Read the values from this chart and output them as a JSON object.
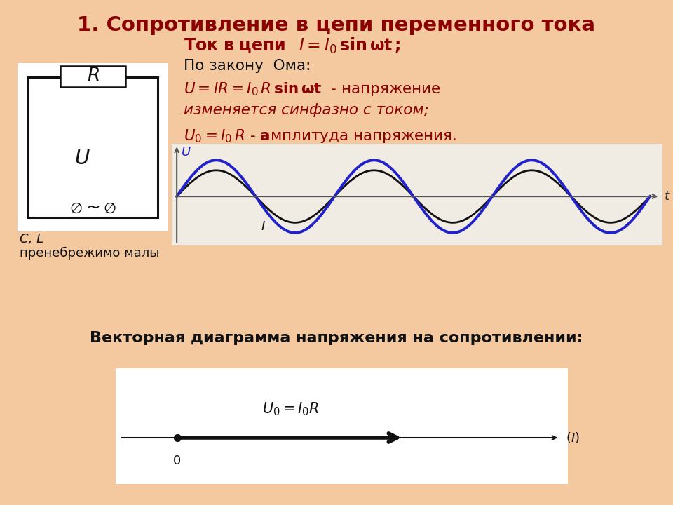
{
  "title": "1. Сопротивление в цепи переменного тока",
  "title_color": "#8B0000",
  "title_fontsize": 21,
  "bg_color": "#f5c9a0",
  "circuit_bg": "#ffffff",
  "wave_bg": "#f0ece4",
  "vec_bg": "#ffffff",
  "curve_color_blue": "#2222cc",
  "curve_color_black": "#111111",
  "red_color": "#8B0000",
  "note1": "C, L",
  "note2": "пренебрежимо малы",
  "vector_label": "Векторная диаграмма напряжения на сопротивлении:"
}
